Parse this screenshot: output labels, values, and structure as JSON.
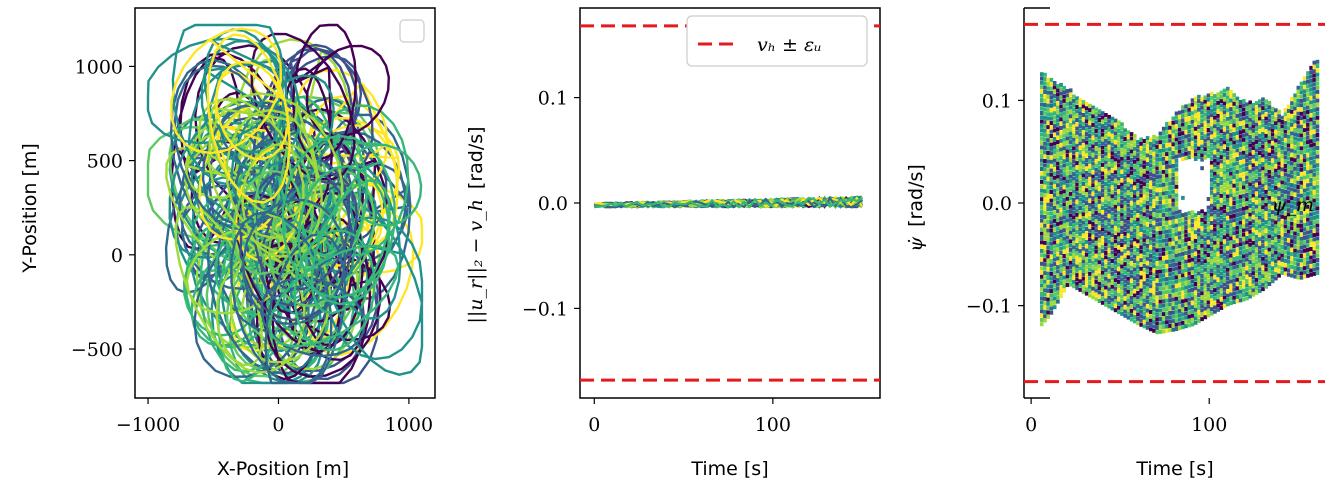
{
  "colors": {
    "viridis": [
      "#440154",
      "#3b528b",
      "#21918c",
      "#5ec962",
      "#9fda3a",
      "#fde725",
      "#31688e",
      "#35b779"
    ],
    "bound_line": "#e41a1c",
    "axes": "#000000"
  },
  "chart_data": [
    {
      "type": "line",
      "description_id": "trajectory",
      "xlabel": "X-Position [m]",
      "ylabel": "Y-Position [m]",
      "xlim": [
        -1100,
        1200
      ],
      "ylim": [
        -760,
        1310
      ],
      "xticks": [
        -1000,
        0,
        1000
      ],
      "xtick_labels": [
        "−1000",
        "0",
        "1000"
      ],
      "yticks": [
        -500,
        0,
        500,
        1000
      ],
      "ytick_labels": [
        "−500",
        "0",
        "500",
        "1000"
      ],
      "legend": "empty box, top-right",
      "x_extent": [
        -1000,
        1100
      ],
      "y_extent": [
        -680,
        1220
      ],
      "series_count": 40
    },
    {
      "type": "line",
      "description_id": "speed-error",
      "xlabel": "Time [s]",
      "ylabel_math": "||u_r||₂ − v_h",
      "ylabel_unit": "[rad/s]",
      "xlim": [
        -8,
        160
      ],
      "ylim": [
        -0.185,
        0.185
      ],
      "xticks": [
        0,
        100
      ],
      "xtick_labels": [
        "0",
        "100"
      ],
      "yticks": [
        -0.1,
        0.0,
        0.1
      ],
      "ytick_labels": [
        "−0.1",
        "0.0",
        "0.1"
      ],
      "bounds": [
        -0.168,
        0.168
      ],
      "legend": "top-right",
      "legend_label": "vₕ ± εᵤ",
      "x_range": [
        0,
        150
      ],
      "error_range": [
        -0.004,
        0.006
      ],
      "series_count": 40
    },
    {
      "type": "heatmap",
      "description_id": "heading-rate",
      "xlabel": "Time [s]",
      "ylabel_math": "ψ̇",
      "ylabel_unit": "[rad/s]",
      "xlim": [
        -4,
        165
      ],
      "ylim": [
        -0.19,
        0.19
      ],
      "xticks": [
        0,
        100
      ],
      "xtick_labels": [
        "0",
        "100"
      ],
      "yticks": [
        -0.1,
        0.0,
        0.1
      ],
      "ytick_labels": [
        "−0.1",
        "0.0",
        "0.1"
      ],
      "bounds": [
        -0.174,
        0.174
      ],
      "annotation": "ψ_m",
      "upper_envelope": [
        [
          5,
          0.125
        ],
        [
          10,
          0.12
        ],
        [
          20,
          0.11
        ],
        [
          30,
          0.095
        ],
        [
          40,
          0.085
        ],
        [
          50,
          0.075
        ],
        [
          60,
          0.06
        ],
        [
          70,
          0.065
        ],
        [
          80,
          0.085
        ],
        [
          90,
          0.1
        ],
        [
          100,
          0.105
        ],
        [
          110,
          0.11
        ],
        [
          120,
          0.095
        ],
        [
          130,
          0.1
        ],
        [
          140,
          0.085
        ],
        [
          150,
          0.115
        ],
        [
          160,
          0.14
        ]
      ],
      "lower_envelope": [
        [
          5,
          -0.12
        ],
        [
          10,
          -0.11
        ],
        [
          20,
          -0.08
        ],
        [
          30,
          -0.09
        ],
        [
          40,
          -0.1
        ],
        [
          50,
          -0.11
        ],
        [
          60,
          -0.12
        ],
        [
          70,
          -0.128
        ],
        [
          80,
          -0.125
        ],
        [
          90,
          -0.12
        ],
        [
          100,
          -0.11
        ],
        [
          110,
          -0.1
        ],
        [
          120,
          -0.095
        ],
        [
          130,
          -0.085
        ],
        [
          140,
          -0.07
        ],
        [
          150,
          -0.075
        ],
        [
          160,
          -0.07
        ]
      ]
    }
  ]
}
